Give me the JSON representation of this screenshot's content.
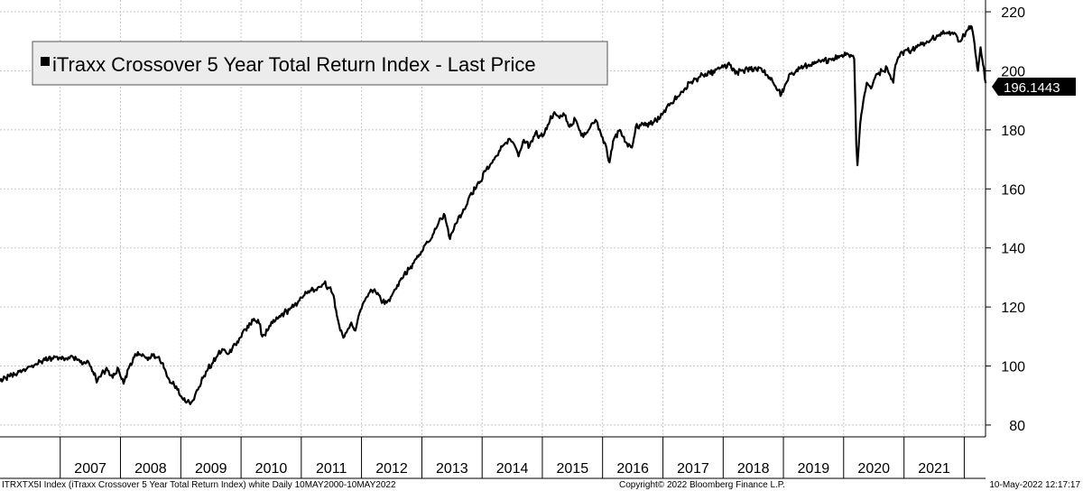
{
  "chart_data": {
    "type": "line",
    "title": "",
    "legend": {
      "label": "iTraxx Crossover 5 Year Total Return Index - Last Price",
      "placement": "top-left"
    },
    "xlabel": "",
    "ylabel": "",
    "x_tick_labels": [
      "2007",
      "2008",
      "2009",
      "2010",
      "2011",
      "2012",
      "2013",
      "2014",
      "2015",
      "2016",
      "2017",
      "2018",
      "2019",
      "2020",
      "2021"
    ],
    "y_ticks": [
      80,
      100,
      120,
      140,
      160,
      180,
      200,
      220
    ],
    "ylim": [
      76,
      224
    ],
    "xlim": [
      "2006-01-01",
      "2022-05-10"
    ],
    "grid": true,
    "last_value": "196.1443",
    "series": [
      {
        "name": "iTraxx Crossover 5 Year Total Return Index - Last Price",
        "color": "#000000",
        "x": [
          "2006-01-01",
          "2006-03-01",
          "2006-05-15",
          "2006-08-01",
          "2006-10-01",
          "2006-12-01",
          "2007-02-01",
          "2007-03-10",
          "2007-04-15",
          "2007-05-20",
          "2007-06-20",
          "2007-07-25",
          "2007-08-15",
          "2007-09-10",
          "2007-10-15",
          "2007-11-15",
          "2007-12-20",
          "2008-01-20",
          "2008-02-25",
          "2008-03-25",
          "2008-04-10",
          "2008-05-15",
          "2008-06-15",
          "2008-07-15",
          "2008-08-15",
          "2008-09-10",
          "2008-09-25",
          "2008-10-15",
          "2008-11-10",
          "2008-12-10",
          "2009-01-10",
          "2009-02-10",
          "2009-03-10",
          "2009-04-15",
          "2009-05-15",
          "2009-06-15",
          "2009-07-15",
          "2009-08-15",
          "2009-09-15",
          "2009-10-15",
          "2009-11-15",
          "2009-12-15",
          "2010-01-15",
          "2010-02-15",
          "2010-03-20",
          "2010-04-20",
          "2010-05-10",
          "2010-06-10",
          "2010-07-10",
          "2010-08-10",
          "2010-09-20",
          "2010-11-15",
          "2010-12-15",
          "2011-01-20",
          "2011-03-01",
          "2011-04-10",
          "2011-05-20",
          "2011-06-20",
          "2011-07-15",
          "2011-08-05",
          "2011-08-25",
          "2011-09-20",
          "2011-10-25",
          "2011-11-25",
          "2011-12-20",
          "2012-01-20",
          "2012-02-20",
          "2012-03-20",
          "2012-04-15",
          "2012-05-20",
          "2012-06-20",
          "2012-07-25",
          "2012-09-15",
          "2012-10-20",
          "2012-12-10",
          "2013-01-20",
          "2013-02-25",
          "2013-04-20",
          "2013-05-20",
          "2013-06-20",
          "2013-07-20",
          "2013-09-15",
          "2013-10-20",
          "2013-12-15",
          "2014-01-20",
          "2014-03-15",
          "2014-04-20",
          "2014-05-15",
          "2014-06-15",
          "2014-07-15",
          "2014-08-10",
          "2014-09-05",
          "2014-10-15",
          "2014-11-20",
          "2014-12-15",
          "2015-01-15",
          "2015-02-15",
          "2015-03-15",
          "2015-04-15",
          "2015-05-15",
          "2015-06-15",
          "2015-07-20",
          "2015-08-25",
          "2015-09-25",
          "2015-10-25",
          "2015-11-25",
          "2015-12-20",
          "2016-01-20",
          "2016-02-12",
          "2016-03-10",
          "2016-04-15",
          "2016-05-15",
          "2016-06-27",
          "2016-07-20",
          "2016-08-20",
          "2016-10-15",
          "2016-12-15",
          "2017-02-15",
          "2017-04-15",
          "2017-06-15",
          "2017-08-15",
          "2017-10-15",
          "2017-12-15",
          "2018-02-10",
          "2018-03-15",
          "2018-04-20",
          "2018-06-15",
          "2018-08-15",
          "2018-10-15",
          "2018-12-20",
          "2019-02-15",
          "2019-04-15",
          "2019-06-15",
          "2019-08-15",
          "2019-10-15",
          "2019-12-15",
          "2020-01-20",
          "2020-02-20",
          "2020-03-05",
          "2020-03-18",
          "2020-03-25",
          "2020-04-10",
          "2020-04-30",
          "2020-05-20",
          "2020-06-15",
          "2020-07-20",
          "2020-08-20",
          "2020-09-20",
          "2020-10-28",
          "2020-11-10",
          "2020-12-10",
          "2021-01-20",
          "2021-02-20",
          "2021-03-20",
          "2021-04-20",
          "2021-05-20",
          "2021-06-20",
          "2021-07-20",
          "2021-08-20",
          "2021-09-20",
          "2021-10-20",
          "2021-11-15",
          "2021-12-01",
          "2021-12-20",
          "2022-01-10",
          "2022-01-25",
          "2022-02-15",
          "2022-02-28",
          "2022-03-10",
          "2022-03-25",
          "2022-04-10",
          "2022-04-25",
          "2022-05-10"
        ],
        "values": [
          94.8,
          96.5,
          98.3,
          100.5,
          102.0,
          103.0,
          102.5,
          103.5,
          102.0,
          100.8,
          101.5,
          97.0,
          95.0,
          97.5,
          98.5,
          96.0,
          99.0,
          94.0,
          100.0,
          103.0,
          103.5,
          104.0,
          102.0,
          103.5,
          103.0,
          101.0,
          99.0,
          96.0,
          94.0,
          92.0,
          89.0,
          88.0,
          88.0,
          92.0,
          96.0,
          99.0,
          101.0,
          104.0,
          105.5,
          104.0,
          107.0,
          108.0,
          112.0,
          113.0,
          116.0,
          114.5,
          110.0,
          112.0,
          114.5,
          116.0,
          118.0,
          120.0,
          122.0,
          124.0,
          125.5,
          126.5,
          128.0,
          126.5,
          124.0,
          117.0,
          112.0,
          110.0,
          114.0,
          112.0,
          118.0,
          122.0,
          125.0,
          126.0,
          124.0,
          121.0,
          122.0,
          126.0,
          131.0,
          133.0,
          137.0,
          141.0,
          143.0,
          150.0,
          151.0,
          143.0,
          148.0,
          153.0,
          158.0,
          162.0,
          166.0,
          170.0,
          173.0,
          175.0,
          177.0,
          175.0,
          171.0,
          176.0,
          174.5,
          179.0,
          178.0,
          179.0,
          183.0,
          186.0,
          184.0,
          185.0,
          181.0,
          183.5,
          178.0,
          179.0,
          182.0,
          183.0,
          179.0,
          175.0,
          169.0,
          177.0,
          180.0,
          176.0,
          174.0,
          181.0,
          181.5,
          182.0,
          184.0,
          189.0,
          192.0,
          196.0,
          198.0,
          199.0,
          201.0,
          202.0,
          199.0,
          200.0,
          200.5,
          201.0,
          197.0,
          192.0,
          199.0,
          201.0,
          202.0,
          203.0,
          204.0,
          205.0,
          206.0,
          205.0,
          204.0,
          175.0,
          168.0,
          182.0,
          190.0,
          196.0,
          194.0,
          199.0,
          200.0,
          201.0,
          196.0,
          202.0,
          206.0,
          207.0,
          207.0,
          208.0,
          209.0,
          210.0,
          211.0,
          212.0,
          212.5,
          213.0,
          213.0,
          212.0,
          210.0,
          211.0,
          213.0,
          214.0,
          215.0,
          211.0,
          206.0,
          200.0,
          208.0,
          202.0,
          196.1443
        ]
      }
    ]
  },
  "footer": {
    "left": "ITRXTX5I Index (iTraxx Crossover 5 Year Total Return Index) white  Daily 10MAY2000-10MAY2022",
    "center": "Copyright© 2022 Bloomberg Finance L.P.",
    "right": "10-May-2022 12:17:17"
  }
}
